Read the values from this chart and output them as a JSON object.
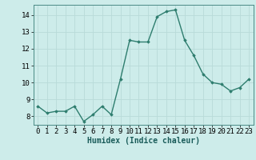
{
  "x": [
    0,
    1,
    2,
    3,
    4,
    5,
    6,
    7,
    8,
    9,
    10,
    11,
    12,
    13,
    14,
    15,
    16,
    17,
    18,
    19,
    20,
    21,
    22,
    23
  ],
  "y": [
    8.6,
    8.2,
    8.3,
    8.3,
    8.6,
    7.7,
    8.1,
    8.6,
    8.1,
    10.2,
    12.5,
    12.4,
    12.4,
    13.9,
    14.2,
    14.3,
    12.5,
    11.6,
    10.5,
    10.0,
    9.9,
    9.5,
    9.7,
    10.2
  ],
  "line_color": "#2e7d6e",
  "marker": "D",
  "markersize": 1.8,
  "linewidth": 1.0,
  "xlabel": "Humidex (Indice chaleur)",
  "xlim": [
    -0.5,
    23.5
  ],
  "ylim": [
    7.5,
    14.6
  ],
  "yticks": [
    8,
    9,
    10,
    11,
    12,
    13,
    14
  ],
  "xticks": [
    0,
    1,
    2,
    3,
    4,
    5,
    6,
    7,
    8,
    9,
    10,
    11,
    12,
    13,
    14,
    15,
    16,
    17,
    18,
    19,
    20,
    21,
    22,
    23
  ],
  "bg_color": "#cdecea",
  "grid_color": "#b8dbd9",
  "tick_fontsize": 6.5,
  "xlabel_fontsize": 7.0
}
